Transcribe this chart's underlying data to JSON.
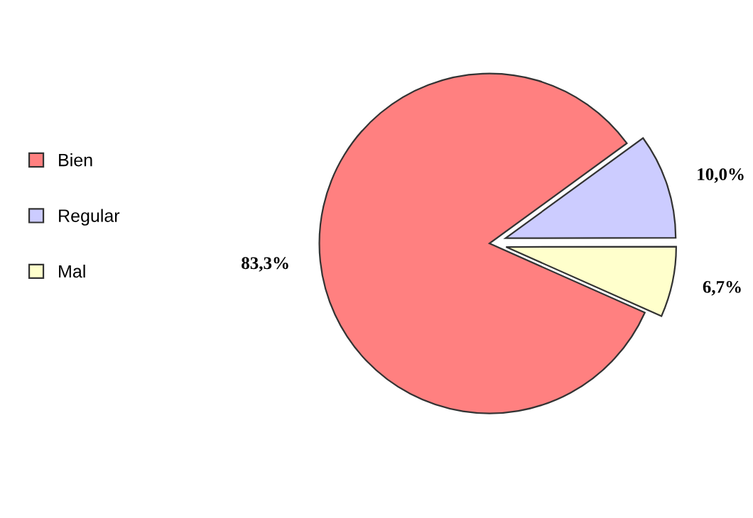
{
  "chart_data": {
    "type": "pie",
    "categories": [
      "Bien",
      "Regular",
      "Mal"
    ],
    "values": [
      83.3,
      10.0,
      6.7
    ],
    "colors": [
      "#ff8080",
      "#ccccff",
      "#ffffcc"
    ],
    "value_labels": [
      "83,3%",
      "10,0%",
      "6,7%"
    ],
    "legend": "left"
  }
}
